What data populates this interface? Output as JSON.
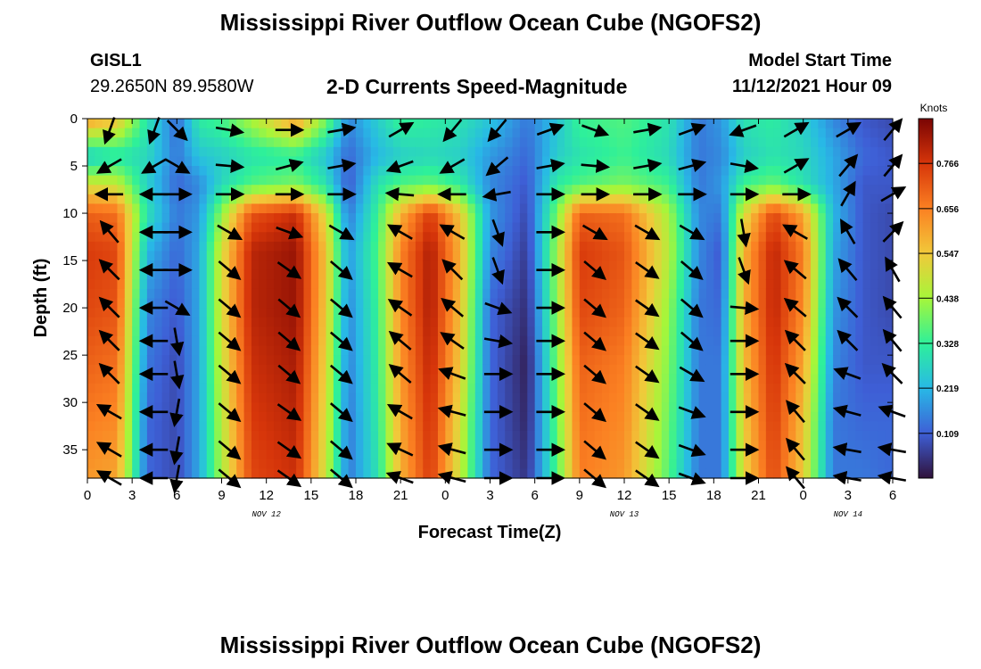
{
  "header": {
    "title": "Mississippi River Outflow Ocean Cube (NGOFS2)",
    "station_id": "GISL1",
    "station_coords": "29.2650N  89.9580W",
    "subtitle": "2-D Currents Speed-Magnitude",
    "model_start_label": "Model Start Time",
    "model_start_value": "11/12/2021 Hour 09"
  },
  "footer": {
    "title": "Mississippi River Outflow Ocean Cube (NGOFS2)"
  },
  "chart_data": {
    "type": "heatmap",
    "title": "2-D Currents Speed-Magnitude",
    "xlabel": "Forecast Time(Z)",
    "ylabel": "Depth (ft)",
    "x_unit": "hours since Nov 12 00Z",
    "xlim": [
      0,
      54
    ],
    "ylim": [
      0,
      38
    ],
    "x_ticks": [
      0,
      3,
      6,
      9,
      12,
      15,
      18,
      21,
      24,
      27,
      30,
      33,
      36,
      39,
      42,
      45,
      48,
      51,
      54
    ],
    "x_tick_labels": [
      "0",
      "3",
      "6",
      "9",
      "12",
      "15",
      "18",
      "21",
      "0",
      "3",
      "6",
      "9",
      "12",
      "15",
      "18",
      "21",
      "0",
      "3",
      "6"
    ],
    "y_ticks": [
      0,
      5,
      10,
      15,
      20,
      25,
      30,
      35
    ],
    "y_tick_labels": [
      "0",
      "5",
      "10",
      "15",
      "20",
      "25",
      "30",
      "35"
    ],
    "date_labels": [
      {
        "hour": 12,
        "text": "NOV 12"
      },
      {
        "hour": 36,
        "text": "NOV 13"
      },
      {
        "hour": 51,
        "text": "NOV 14"
      }
    ],
    "colorbar": {
      "label": "Knots",
      "min": 0.0,
      "max": 0.875,
      "tick_values": [
        0.766,
        0.656,
        0.547,
        0.438,
        0.328,
        0.219,
        0.109
      ],
      "tick_labels": [
        "0.766",
        "0.656",
        "0.547",
        "0.438",
        "0.328",
        "0.219",
        "0.109"
      ],
      "colormap": [
        "#30123b",
        "#3e5fd6",
        "#28b9e6",
        "#2ef09a",
        "#a6f63a",
        "#f1c93a",
        "#fb8022",
        "#d7360a",
        "#7a0403"
      ]
    },
    "speed_profiles": {
      "depths": [
        0,
        4,
        7,
        10,
        14,
        20,
        26,
        32,
        38
      ],
      "columns": [
        {
          "hour": 0,
          "speeds": [
            0.62,
            0.25,
            0.5,
            0.7,
            0.76,
            0.74,
            0.7,
            0.66,
            0.62
          ]
        },
        {
          "hour": 2,
          "speeds": [
            0.56,
            0.3,
            0.48,
            0.68,
            0.74,
            0.72,
            0.68,
            0.64,
            0.6
          ]
        },
        {
          "hour": 4,
          "speeds": [
            0.3,
            0.28,
            0.26,
            0.3,
            0.22,
            0.16,
            0.14,
            0.12,
            0.12
          ]
        },
        {
          "hour": 6,
          "speeds": [
            0.12,
            0.14,
            0.12,
            0.14,
            0.12,
            0.1,
            0.08,
            0.08,
            0.08
          ]
        },
        {
          "hour": 7.5,
          "speeds": [
            0.32,
            0.24,
            0.16,
            0.18,
            0.2,
            0.2,
            0.2,
            0.2,
            0.2
          ]
        },
        {
          "hour": 9,
          "speeds": [
            0.35,
            0.26,
            0.28,
            0.42,
            0.5,
            0.5,
            0.48,
            0.46,
            0.44
          ]
        },
        {
          "hour": 11,
          "speeds": [
            0.45,
            0.3,
            0.36,
            0.72,
            0.8,
            0.8,
            0.78,
            0.76,
            0.74
          ]
        },
        {
          "hour": 14,
          "speeds": [
            0.62,
            0.32,
            0.4,
            0.78,
            0.84,
            0.84,
            0.82,
            0.8,
            0.78
          ]
        },
        {
          "hour": 16,
          "speeds": [
            0.4,
            0.24,
            0.3,
            0.5,
            0.55,
            0.54,
            0.52,
            0.5,
            0.48
          ]
        },
        {
          "hour": 17.5,
          "speeds": [
            0.16,
            0.12,
            0.1,
            0.14,
            0.18,
            0.16,
            0.15,
            0.14,
            0.14
          ]
        },
        {
          "hour": 19.5,
          "speeds": [
            0.26,
            0.22,
            0.3,
            0.34,
            0.36,
            0.34,
            0.33,
            0.32,
            0.3
          ]
        },
        {
          "hour": 21,
          "speeds": [
            0.34,
            0.26,
            0.36,
            0.58,
            0.65,
            0.64,
            0.62,
            0.6,
            0.58
          ]
        },
        {
          "hour": 23,
          "speeds": [
            0.32,
            0.28,
            0.38,
            0.76,
            0.82,
            0.82,
            0.8,
            0.78,
            0.76
          ]
        },
        {
          "hour": 25,
          "speeds": [
            0.3,
            0.26,
            0.32,
            0.55,
            0.58,
            0.56,
            0.54,
            0.5,
            0.48
          ]
        },
        {
          "hour": 27,
          "speeds": [
            0.24,
            0.18,
            0.16,
            0.18,
            0.16,
            0.12,
            0.12,
            0.12,
            0.12
          ]
        },
        {
          "hour": 29.5,
          "speeds": [
            0.14,
            0.12,
            0.1,
            0.08,
            0.06,
            0.04,
            0.02,
            0.03,
            0.05
          ]
        },
        {
          "hour": 31.5,
          "speeds": [
            0.24,
            0.26,
            0.32,
            0.4,
            0.44,
            0.42,
            0.4,
            0.38,
            0.36
          ]
        },
        {
          "hour": 33,
          "speeds": [
            0.34,
            0.3,
            0.36,
            0.7,
            0.76,
            0.74,
            0.7,
            0.68,
            0.66
          ]
        },
        {
          "hour": 36,
          "speeds": [
            0.36,
            0.34,
            0.4,
            0.68,
            0.72,
            0.7,
            0.66,
            0.64,
            0.62
          ]
        },
        {
          "hour": 39,
          "speeds": [
            0.3,
            0.28,
            0.34,
            0.44,
            0.46,
            0.42,
            0.4,
            0.38,
            0.36
          ]
        },
        {
          "hour": 41,
          "speeds": [
            0.14,
            0.14,
            0.14,
            0.16,
            0.16,
            0.14,
            0.14,
            0.14,
            0.14
          ]
        },
        {
          "hour": 42.5,
          "speeds": [
            0.18,
            0.16,
            0.18,
            0.14,
            0.1,
            0.12,
            0.14,
            0.14,
            0.14
          ]
        },
        {
          "hour": 44,
          "speeds": [
            0.3,
            0.26,
            0.34,
            0.5,
            0.58,
            0.58,
            0.56,
            0.54,
            0.52
          ]
        },
        {
          "hour": 46,
          "speeds": [
            0.32,
            0.3,
            0.38,
            0.74,
            0.8,
            0.8,
            0.78,
            0.76,
            0.74
          ]
        },
        {
          "hour": 48,
          "speeds": [
            0.26,
            0.28,
            0.3,
            0.6,
            0.66,
            0.64,
            0.6,
            0.56,
            0.54
          ]
        },
        {
          "hour": 50,
          "speeds": [
            0.16,
            0.2,
            0.2,
            0.22,
            0.2,
            0.18,
            0.16,
            0.14,
            0.14
          ]
        },
        {
          "hour": 52,
          "speeds": [
            0.1,
            0.12,
            0.1,
            0.1,
            0.1,
            0.1,
            0.1,
            0.12,
            0.14
          ]
        },
        {
          "hour": 54,
          "speeds": [
            0.08,
            0.1,
            0.1,
            0.08,
            0.08,
            0.08,
            0.1,
            0.12,
            0.12
          ]
        }
      ]
    },
    "vector_depths": [
      1.2,
      5,
      8,
      12,
      16,
      20,
      23.5,
      27,
      31,
      35,
      38
    ],
    "vectors": [
      {
        "hour": 1.5,
        "dirs": [
          200,
          240,
          270,
          320,
          315,
          315,
          315,
          315,
          300,
          300,
          300
        ]
      },
      {
        "hour": 4.5,
        "dirs": [
          200,
          240,
          270,
          270,
          270,
          270,
          270,
          270,
          270,
          270,
          270
        ]
      },
      {
        "hour": 6,
        "dirs": [
          135,
          120,
          90,
          90,
          90,
          120,
          170,
          170,
          190,
          190,
          190
        ]
      },
      {
        "hour": 9.5,
        "dirs": [
          100,
          95,
          90,
          120,
          130,
          130,
          130,
          130,
          130,
          130,
          130
        ]
      },
      {
        "hour": 13.5,
        "dirs": [
          90,
          75,
          90,
          110,
          125,
          130,
          130,
          130,
          125,
          125,
          125
        ]
      },
      {
        "hour": 17,
        "dirs": [
          80,
          80,
          90,
          120,
          130,
          130,
          130,
          130,
          130,
          130,
          130
        ]
      },
      {
        "hour": 21,
        "dirs": [
          60,
          250,
          275,
          300,
          300,
          305,
          310,
          310,
          300,
          295,
          290
        ]
      },
      {
        "hour": 24.5,
        "dirs": [
          220,
          240,
          270,
          300,
          315,
          310,
          305,
          290,
          285,
          285,
          285
        ]
      },
      {
        "hour": 27.5,
        "dirs": [
          220,
          230,
          260,
          160,
          160,
          110,
          100,
          90,
          90,
          90,
          90
        ]
      },
      {
        "hour": 31,
        "dirs": [
          70,
          80,
          90,
          90,
          90,
          90,
          90,
          90,
          90,
          90,
          90
        ]
      },
      {
        "hour": 34,
        "dirs": [
          110,
          95,
          90,
          120,
          130,
          130,
          130,
          130,
          130,
          130,
          130
        ]
      },
      {
        "hour": 37.5,
        "dirs": [
          80,
          80,
          90,
          120,
          125,
          125,
          125,
          125,
          125,
          125,
          125
        ]
      },
      {
        "hour": 40.5,
        "dirs": [
          70,
          75,
          90,
          120,
          130,
          130,
          130,
          120,
          110,
          110,
          110
        ]
      },
      {
        "hour": 44,
        "dirs": [
          250,
          100,
          90,
          170,
          160,
          95,
          90,
          90,
          90,
          90,
          90
        ]
      },
      {
        "hour": 47.5,
        "dirs": [
          60,
          60,
          90,
          300,
          310,
          310,
          315,
          315,
          320,
          320,
          320
        ]
      },
      {
        "hour": 51,
        "dirs": [
          60,
          40,
          30,
          330,
          320,
          315,
          315,
          290,
          285,
          280,
          280
        ]
      },
      {
        "hour": 54,
        "dirs": [
          40,
          40,
          60,
          45,
          330,
          320,
          320,
          315,
          290,
          280,
          280
        ]
      }
    ]
  }
}
